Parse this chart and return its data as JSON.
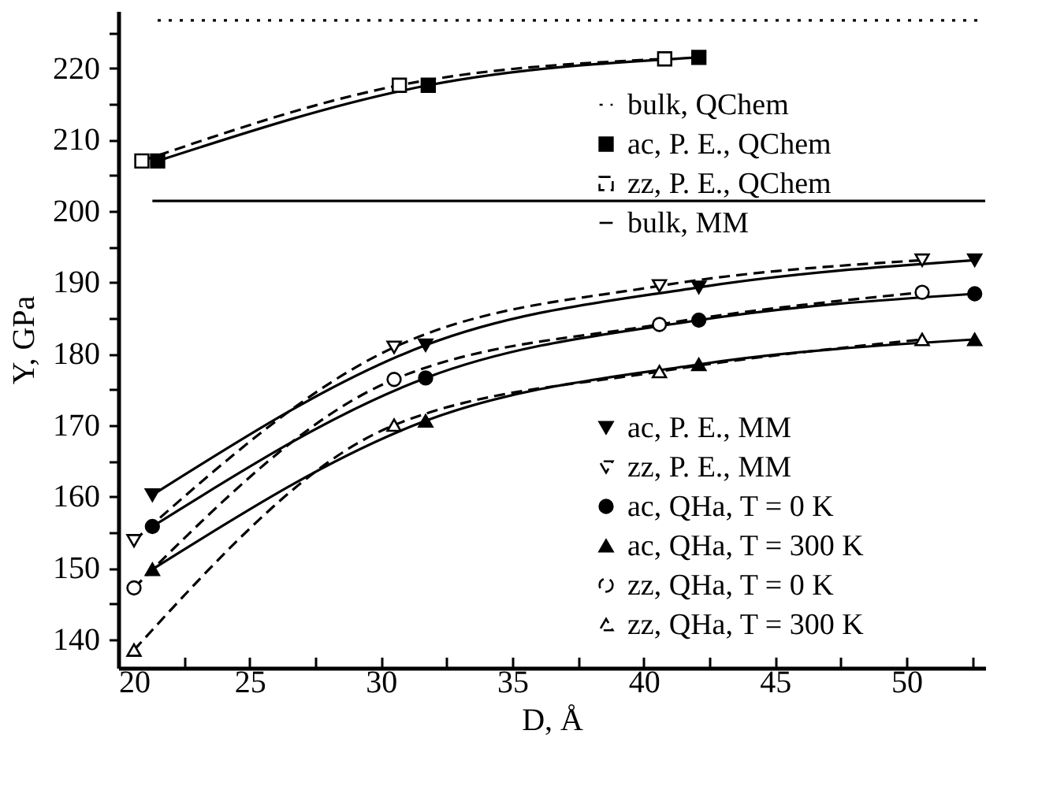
{
  "chart_data": {
    "type": "line",
    "xlabel": "D, Å",
    "ylabel": "Y, GPa",
    "xlim": [
      20,
      53
    ],
    "ylim": [
      136,
      228
    ],
    "xticks": [
      20,
      {
        "value": 22.5,
        "label": null
      },
      25,
      {
        "value": 27.5,
        "label": null
      },
      30,
      {
        "value": 32.5,
        "label": null
      },
      35,
      {
        "value": 37.5,
        "label": null
      },
      40,
      {
        "value": 42.5,
        "label": null
      },
      45,
      {
        "value": 47.5,
        "label": null
      },
      50,
      {
        "value": 52.5,
        "label": null
      }
    ],
    "yticks": [
      140,
      {
        "value": 145,
        "label": null
      },
      150,
      {
        "value": 155,
        "label": null
      },
      160,
      {
        "value": 165,
        "label": null
      },
      170,
      {
        "value": 175,
        "label": null
      },
      180,
      {
        "value": 185,
        "label": null
      },
      190,
      {
        "value": 195,
        "label": null
      },
      200,
      {
        "value": 205,
        "label": null
      },
      210,
      {
        "value": 215,
        "label": null
      },
      220,
      {
        "value": 225,
        "label": null
      }
    ],
    "grid": false,
    "legend": "right",
    "series": [
      {
        "name": "bulk, QChem",
        "color": "#000000",
        "line_style": "dotted",
        "marker": "none",
        "x": [
          21.5,
          53
        ],
        "values": [
          226.7,
          226.7
        ]
      },
      {
        "name": "ac, P. E., QChem",
        "color": "#000000",
        "line_style": "solid",
        "marker": "square",
        "x": [
          21.5,
          31.8,
          42.1
        ],
        "values": [
          207.0,
          217.6,
          221.5
        ]
      },
      {
        "name": "zz, P. E., QChem",
        "color": "#000000",
        "line_style": "dashed",
        "marker": "square",
        "x": [
          20.9,
          30.7,
          40.8
        ],
        "values": [
          207.0,
          217.6,
          221.3
        ]
      },
      {
        "name": "bulk, MM",
        "color": "#000000",
        "line_style": "solid",
        "marker": "none",
        "x": [
          21.3,
          53
        ],
        "values": [
          201.4,
          201.4
        ]
      },
      {
        "name": "ac, P. E., MM",
        "color": "#000000",
        "line_style": "solid",
        "marker": "triangle-down",
        "x": [
          21.3,
          31.7,
          42.1,
          52.6
        ],
        "values": [
          160.2,
          181.2,
          189.3,
          193.1
        ]
      },
      {
        "name": "zz, P. E., MM",
        "color": "#000000",
        "line_style": "dashed",
        "marker": "triangle-down",
        "x": [
          20.6,
          30.5,
          40.6,
          50.6
        ],
        "values": [
          153.8,
          180.9,
          189.5,
          193.1
        ]
      },
      {
        "name": "ac, QHa, T = 0 K",
        "color": "#000000",
        "line_style": "solid",
        "marker": "circle",
        "x": [
          21.3,
          31.7,
          42.1,
          52.6
        ],
        "values": [
          155.8,
          176.6,
          184.7,
          188.4
        ]
      },
      {
        "name": "ac, QHa, T = 300 K",
        "color": "#000000",
        "line_style": "solid",
        "marker": "triangle",
        "x": [
          21.3,
          31.7,
          42.1,
          52.6
        ],
        "values": [
          149.8,
          170.6,
          178.5,
          182.0
        ]
      },
      {
        "name": "zz, QHa, T = 0 K",
        "color": "#000000",
        "line_style": "dashed",
        "marker": "circle",
        "x": [
          20.6,
          30.5,
          40.6,
          50.6
        ],
        "values": [
          147.2,
          176.4,
          184.1,
          188.6
        ]
      },
      {
        "name": "zz, QHa, T = 300 K",
        "color": "#000000",
        "line_style": "dashed",
        "marker": "triangle",
        "x": [
          20.6,
          30.5,
          40.6,
          50.6
        ],
        "values": [
          138.5,
          170.0,
          177.5,
          182.0
        ]
      }
    ]
  }
}
